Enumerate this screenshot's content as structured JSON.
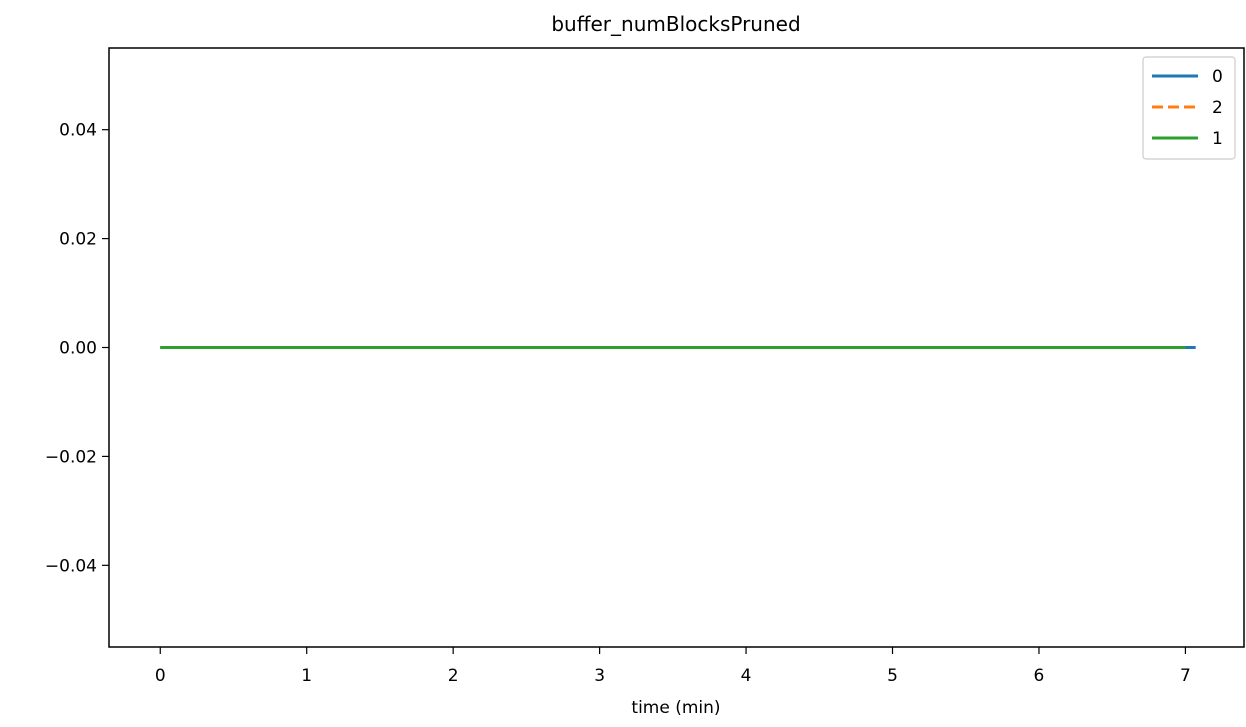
{
  "chart_data": {
    "type": "line",
    "title": "buffer_numBlocksPruned",
    "xlabel": "time (min)",
    "ylabel": "",
    "xlim": [
      -0.35,
      7.4
    ],
    "ylim": [
      -0.055,
      0.055
    ],
    "xticks": [
      0,
      1,
      2,
      3,
      4,
      5,
      6,
      7
    ],
    "xtick_labels": [
      "0",
      "1",
      "2",
      "3",
      "4",
      "5",
      "6",
      "7"
    ],
    "yticks": [
      0.04,
      0.02,
      0.0,
      -0.02,
      -0.04
    ],
    "ytick_labels": [
      "0.04",
      "0.02",
      "0.00",
      "−0.02",
      "−0.04"
    ],
    "grid": false,
    "legend_position": "top-right",
    "series": [
      {
        "name": "0",
        "color": "#1f77b4",
        "dash": "solid",
        "x": [
          0,
          7.07
        ],
        "y": [
          0,
          0
        ]
      },
      {
        "name": "2",
        "color": "#ff7f0e",
        "dash": "dashed",
        "x": [
          0,
          7.0
        ],
        "y": [
          0,
          0
        ]
      },
      {
        "name": "1",
        "color": "#2ca02c",
        "dash": "solid",
        "x": [
          0,
          7.0
        ],
        "y": [
          0,
          0
        ]
      }
    ]
  }
}
